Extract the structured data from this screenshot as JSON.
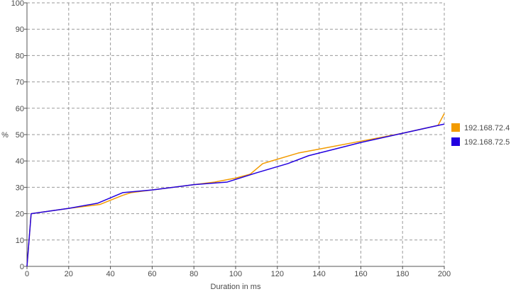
{
  "chart_data": {
    "type": "line",
    "title": "",
    "xlabel": "Duration in ms",
    "ylabel": "%",
    "xlim": [
      0,
      200
    ],
    "ylim": [
      0,
      100
    ],
    "x_ticks": [
      0,
      20,
      40,
      60,
      80,
      100,
      120,
      140,
      160,
      180,
      200
    ],
    "y_ticks": [
      0,
      10,
      20,
      30,
      40,
      50,
      60,
      70,
      80,
      90,
      100
    ],
    "grid": true,
    "legend_position": "right",
    "series": [
      {
        "name": "192.168.72.4",
        "color": "#f29b00",
        "points": [
          [
            0,
            0
          ],
          [
            2,
            20
          ],
          [
            20,
            22
          ],
          [
            35,
            23.5
          ],
          [
            46,
            27
          ],
          [
            50,
            28
          ],
          [
            60,
            29
          ],
          [
            80,
            31
          ],
          [
            90,
            32
          ],
          [
            100,
            33.5
          ],
          [
            107,
            35
          ],
          [
            113,
            39
          ],
          [
            130,
            43
          ],
          [
            140,
            44.5
          ],
          [
            160,
            47.5
          ],
          [
            180,
            50.5
          ],
          [
            197,
            53.5
          ],
          [
            200,
            58
          ]
        ]
      },
      {
        "name": "192.168.72.5",
        "color": "#2200e0",
        "points": [
          [
            0,
            0
          ],
          [
            2,
            20
          ],
          [
            20,
            22
          ],
          [
            34,
            24
          ],
          [
            46,
            28
          ],
          [
            60,
            29
          ],
          [
            80,
            31
          ],
          [
            96,
            32
          ],
          [
            110,
            35.5
          ],
          [
            125,
            39
          ],
          [
            135,
            42
          ],
          [
            150,
            45
          ],
          [
            160,
            47
          ],
          [
            180,
            50.5
          ],
          [
            200,
            54
          ]
        ]
      }
    ]
  }
}
